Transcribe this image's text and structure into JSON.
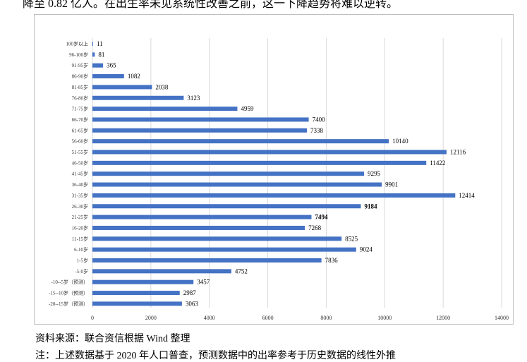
{
  "top_text": "降至 0.82 亿人。在出生率未见系统性改善之前，这一下降趋势将难以逆转。",
  "source_note": "资料来源：联合资信根据 Wind 整理",
  "footnote": "注：上述数据基于 2020 年人口普查，预测数据中的出率参考于历史数据的线性外推",
  "chart_data": {
    "type": "bar",
    "orientation": "horizontal",
    "title": "",
    "xlabel": "",
    "ylabel": "",
    "xlim": [
      0,
      14000
    ],
    "xticks": [
      0,
      2000,
      4000,
      6000,
      8000,
      10000,
      12000,
      14000
    ],
    "grid": true,
    "legend": "none",
    "bar_color": "#4472c4",
    "categories": [
      "100岁以上",
      "96-100岁",
      "91-95岁",
      "86-90岁",
      "81-85岁",
      "76-80岁",
      "71-75岁",
      "66-70岁",
      "61-65岁",
      "56-60岁",
      "51-55岁",
      "46-50岁",
      "41-45岁",
      "36-40岁",
      "31-35岁",
      "26-30岁",
      "21-25岁",
      "16-20岁",
      "11-15岁",
      "6-10岁",
      "1-5岁",
      "-5-0岁",
      "-10--5岁（预测）",
      "-15--10岁（预测）",
      "-20--15岁（预测）"
    ],
    "values": [
      11,
      81,
      365,
      1082,
      2038,
      3123,
      4959,
      7400,
      7338,
      10140,
      12116,
      11422,
      9295,
      9901,
      12414,
      9184,
      7494,
      7268,
      8525,
      9024,
      7836,
      4752,
      3457,
      2987,
      3063
    ],
    "value_labels": [
      "11",
      "81",
      "365",
      "1082",
      "2038",
      "3123",
      "4959",
      "7400",
      "7338",
      "10140",
      "12116",
      "11422",
      "9295",
      "9901",
      "12414",
      "9184",
      "7494",
      "7268",
      "8525",
      "9024",
      "7836",
      "4752",
      "3457",
      "2987",
      "3063"
    ],
    "bold_labels": [
      "9184",
      "7494"
    ]
  }
}
